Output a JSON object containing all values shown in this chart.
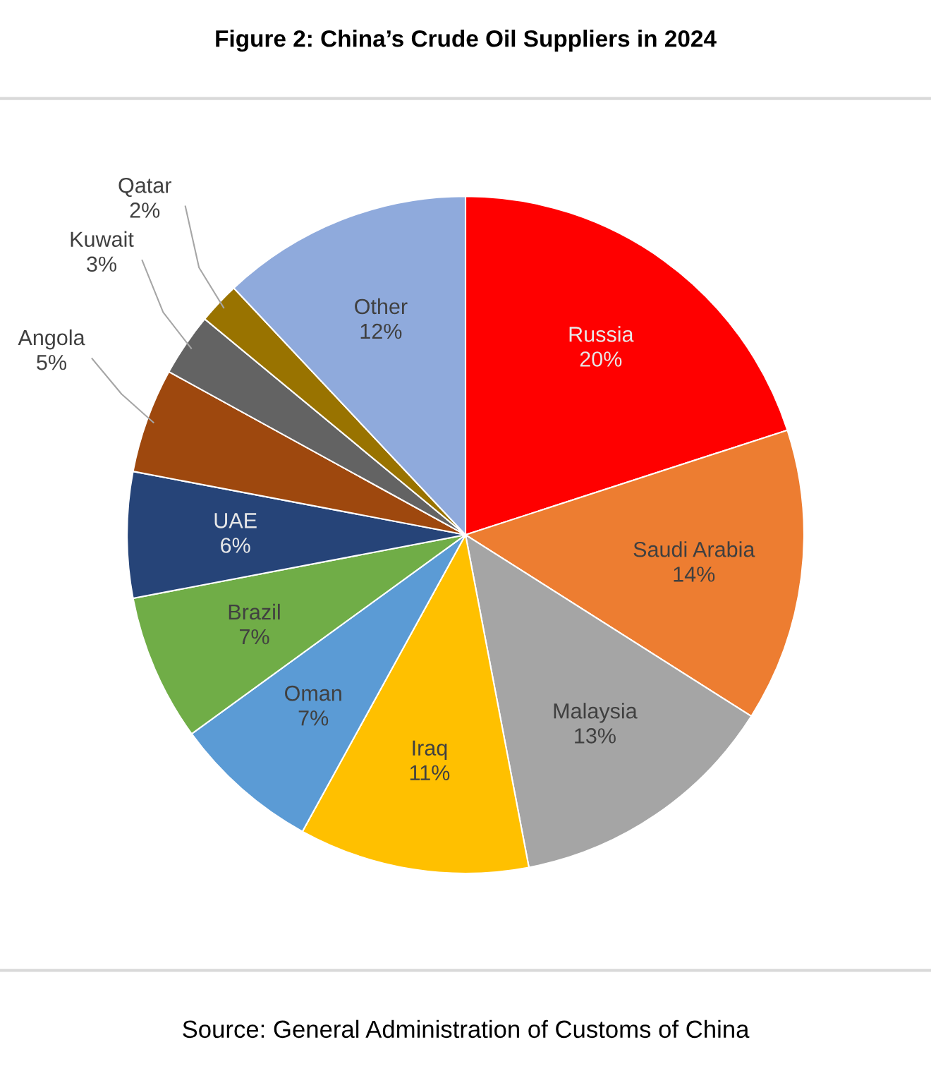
{
  "chart_data": {
    "type": "pie",
    "title": "Figure 2: China’s Crude Oil Suppliers in 2024",
    "categories": [
      "Russia",
      "Saudi Arabia",
      "Malaysia",
      "Iraq",
      "Oman",
      "Brazil",
      "UAE",
      "Angola",
      "Kuwait",
      "Qatar",
      "Other"
    ],
    "values": [
      20,
      14,
      13,
      11,
      7,
      7,
      6,
      5,
      3,
      2,
      12
    ],
    "value_labels": [
      "20%",
      "14%",
      "13%",
      "11%",
      "7%",
      "7%",
      "6%",
      "5%",
      "3%",
      "2%",
      "12%"
    ],
    "colors": [
      "#ff0000",
      "#ed7d31",
      "#a5a5a5",
      "#ffc000",
      "#5b9bd5",
      "#70ad47",
      "#264478",
      "#9e480e",
      "#636363",
      "#997300",
      "#8faadc"
    ],
    "annotations": [
      "Source: General Administration of Customs of China"
    ]
  }
}
